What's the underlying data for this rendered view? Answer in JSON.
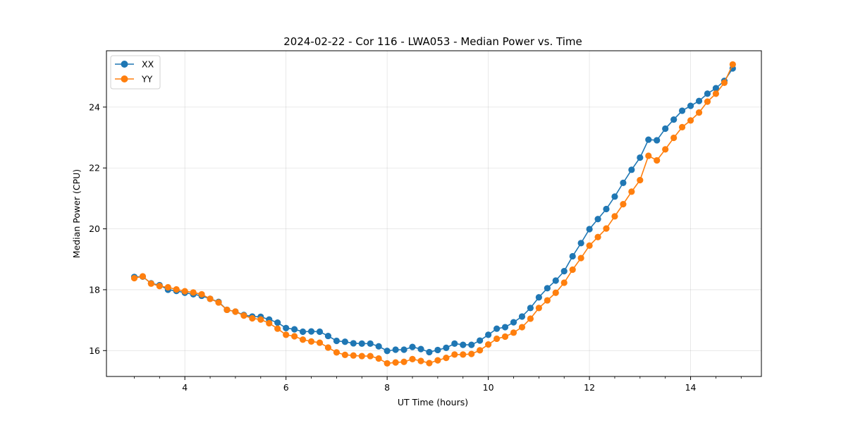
{
  "chart_data": {
    "type": "line",
    "title": "2024-02-22 - Cor 116 - LWA053 - Median Power vs. Time",
    "xlabel": "UT Time (hours)",
    "ylabel": "Median Power (CPU)",
    "xlim": [
      2.45,
      15.4
    ],
    "ylim": [
      15.15,
      25.85
    ],
    "xticks": [
      4,
      6,
      8,
      10,
      12,
      14
    ],
    "xtick_labels": [
      "4",
      "6",
      "8",
      "10",
      "12",
      "14"
    ],
    "yticks": [
      16,
      18,
      20,
      22,
      24
    ],
    "ytick_labels": [
      "16",
      "18",
      "20",
      "22",
      "24"
    ],
    "grid": true,
    "legend_position": "upper-left",
    "x": [
      3.0,
      3.167,
      3.333,
      3.5,
      3.667,
      3.833,
      4.0,
      4.167,
      4.333,
      4.5,
      4.667,
      4.833,
      5.0,
      5.167,
      5.333,
      5.5,
      5.667,
      5.833,
      6.0,
      6.167,
      6.333,
      6.5,
      6.667,
      6.833,
      7.0,
      7.167,
      7.333,
      7.5,
      7.667,
      7.833,
      8.0,
      8.167,
      8.333,
      8.5,
      8.667,
      8.833,
      9.0,
      9.167,
      9.333,
      9.5,
      9.667,
      9.833,
      10.0,
      10.167,
      10.333,
      10.5,
      10.667,
      10.833,
      11.0,
      11.167,
      11.333,
      11.5,
      11.667,
      11.833,
      12.0,
      12.167,
      12.333,
      12.5,
      12.667,
      12.833,
      13.0,
      13.167,
      13.333,
      13.5,
      13.667,
      13.833,
      14.0,
      14.167,
      14.333,
      14.5,
      14.667,
      14.833
    ],
    "series": [
      {
        "name": "XX",
        "color": "#1f77b4",
        "values": [
          18.42,
          18.43,
          18.21,
          18.15,
          18.0,
          17.96,
          17.9,
          17.85,
          17.8,
          17.7,
          17.6,
          17.34,
          17.28,
          17.17,
          17.12,
          17.11,
          17.02,
          16.92,
          16.74,
          16.7,
          16.62,
          16.63,
          16.62,
          16.48,
          16.32,
          16.29,
          16.24,
          16.23,
          16.23,
          16.14,
          15.99,
          16.03,
          16.03,
          16.12,
          16.05,
          15.95,
          16.02,
          16.09,
          16.23,
          16.19,
          16.19,
          16.33,
          16.52,
          16.72,
          16.77,
          16.93,
          17.12,
          17.4,
          17.75,
          18.05,
          18.3,
          18.61,
          19.1,
          19.53,
          19.99,
          20.32,
          20.65,
          21.06,
          21.51,
          21.94,
          22.34,
          22.93,
          22.91,
          23.29,
          23.59,
          23.88,
          24.04,
          24.2,
          24.44,
          24.62,
          24.86,
          25.27
        ]
      },
      {
        "name": "YY",
        "color": "#ff7f0e",
        "values": [
          18.38,
          18.44,
          18.2,
          18.12,
          18.08,
          18.01,
          17.95,
          17.91,
          17.85,
          17.7,
          17.58,
          17.34,
          17.28,
          17.15,
          17.06,
          17.02,
          16.9,
          16.72,
          16.52,
          16.47,
          16.36,
          16.3,
          16.26,
          16.1,
          15.94,
          15.86,
          15.84,
          15.82,
          15.82,
          15.74,
          15.58,
          15.61,
          15.63,
          15.72,
          15.66,
          15.59,
          15.68,
          15.76,
          15.87,
          15.87,
          15.89,
          16.01,
          16.2,
          16.39,
          16.46,
          16.59,
          16.77,
          17.05,
          17.4,
          17.65,
          17.9,
          18.23,
          18.66,
          19.04,
          19.45,
          19.73,
          20.01,
          20.41,
          20.81,
          21.22,
          21.6,
          22.4,
          22.25,
          22.61,
          22.99,
          23.34,
          23.56,
          23.82,
          24.18,
          24.44,
          24.8,
          25.4
        ]
      }
    ]
  }
}
